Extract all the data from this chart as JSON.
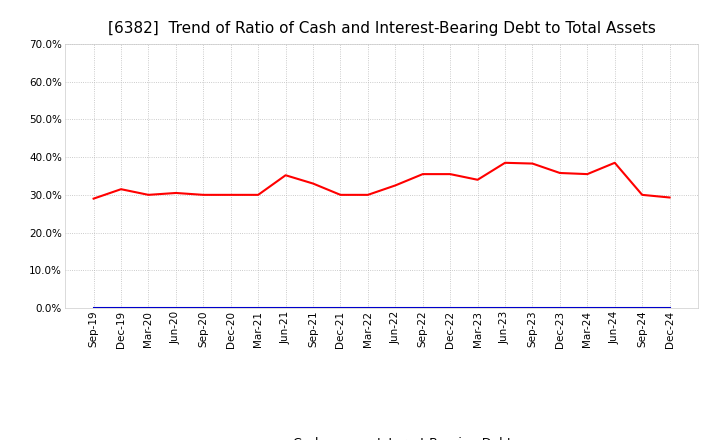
{
  "title": "[6382]  Trend of Ratio of Cash and Interest-Bearing Debt to Total Assets",
  "x_labels": [
    "Sep-19",
    "Dec-19",
    "Mar-20",
    "Jun-20",
    "Sep-20",
    "Dec-20",
    "Mar-21",
    "Jun-21",
    "Sep-21",
    "Dec-21",
    "Mar-22",
    "Jun-22",
    "Sep-22",
    "Dec-22",
    "Mar-23",
    "Jun-23",
    "Sep-23",
    "Dec-23",
    "Mar-24",
    "Jun-24",
    "Sep-24",
    "Dec-24"
  ],
  "cash": [
    0.29,
    0.315,
    0.3,
    0.305,
    0.3,
    0.3,
    0.3,
    0.352,
    0.33,
    0.3,
    0.3,
    0.325,
    0.355,
    0.355,
    0.34,
    0.385,
    0.383,
    0.358,
    0.355,
    0.385,
    0.3,
    0.293
  ],
  "interest_bearing_debt": [
    0.0,
    0.0,
    0.0,
    0.0,
    0.0,
    0.0,
    0.0,
    0.0,
    0.0,
    0.0,
    0.0,
    0.0,
    0.0,
    0.0,
    0.0,
    0.0,
    0.0,
    0.0,
    0.0,
    0.0,
    0.0,
    0.0
  ],
  "cash_color": "#ff0000",
  "debt_color": "#0000cc",
  "ylim": [
    0.0,
    0.7
  ],
  "yticks": [
    0.0,
    0.1,
    0.2,
    0.3,
    0.4,
    0.5,
    0.6,
    0.7
  ],
  "background_color": "#ffffff",
  "plot_bg_color": "#ffffff",
  "grid_color": "#bbbbbb",
  "title_fontsize": 11,
  "tick_fontsize": 7.5
}
